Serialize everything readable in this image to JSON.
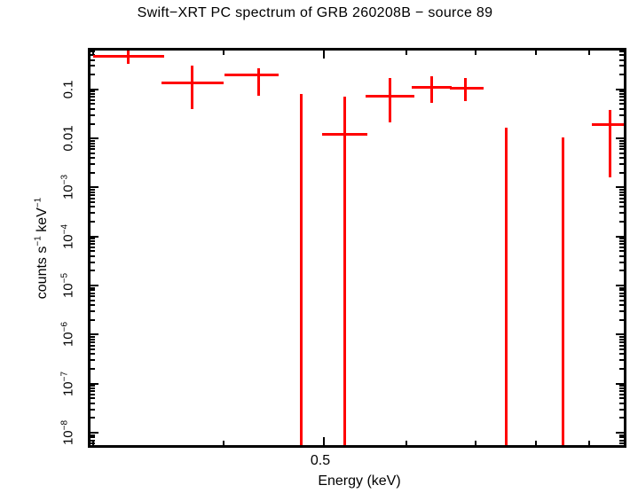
{
  "colors": {
    "data": "#ff0000",
    "axis": "#000000",
    "background": "#ffffff"
  },
  "chart_data": {
    "type": "scatter",
    "title": "Swift−XRT PC spectrum of GRB 260208B − source 89",
    "xlabel": "Energy (keV)",
    "ylabel_parts": [
      {
        "t": "counts s"
      },
      {
        "sup": "−1"
      },
      {
        "t": " keV"
      },
      {
        "sup": "−1"
      }
    ],
    "xscale": "log",
    "yscale": "log",
    "xlim": [
      0.298,
      0.972
    ],
    "ylim": [
      5.6e-09,
      0.62
    ],
    "grid": false,
    "legend": "none",
    "x_ticks": {
      "major": [
        0.5
      ],
      "minor": [
        0.3,
        0.4,
        0.6,
        0.7,
        0.8,
        0.9
      ],
      "labels": [
        {
          "value": 0.5,
          "text": "0.5"
        }
      ]
    },
    "y_ticks": {
      "major_labels": [
        {
          "v": 0.1,
          "t": "0.1"
        },
        {
          "v": 0.01,
          "t": "0.01"
        },
        {
          "v": 0.001,
          "t": "10",
          "sup": "−3"
        },
        {
          "v": 0.0001,
          "t": "10",
          "sup": "−4"
        },
        {
          "v": 1e-05,
          "t": "10",
          "sup": "−5"
        },
        {
          "v": 1e-06,
          "t": "10",
          "sup": "−6"
        },
        {
          "v": 1e-07,
          "t": "10",
          "sup": "−7"
        },
        {
          "v": 1e-08,
          "t": "10",
          "sup": "−8"
        }
      ]
    },
    "series": [
      {
        "name": "PC spectrum",
        "color": "#ff0000",
        "points": [
          {
            "e": 0.324,
            "e_lo": 0.3,
            "e_hi": 0.351,
            "rate": 0.48,
            "rate_hi": 0.64,
            "rate_lo": 0.33
          },
          {
            "e": 0.373,
            "e_lo": 0.349,
            "e_hi": 0.4,
            "rate": 0.134,
            "rate_hi": 0.31,
            "rate_lo": 0.04
          },
          {
            "e": 0.433,
            "e_lo": 0.401,
            "e_hi": 0.452,
            "rate": 0.194,
            "rate_hi": 0.27,
            "rate_lo": 0.075
          },
          {
            "e": 0.524,
            "e_lo": 0.498,
            "e_hi": 0.551,
            "rate": 0.0121,
            "rate_hi": 0.072,
            "rate_lo": null
          },
          {
            "e": 0.579,
            "e_lo": 0.548,
            "e_hi": 0.611,
            "rate": 0.072,
            "rate_hi": 0.171,
            "rate_lo": 0.0217
          },
          {
            "e": 0.635,
            "e_lo": 0.607,
            "e_hi": 0.663,
            "rate": 0.109,
            "rate_hi": 0.186,
            "rate_lo": 0.0538
          },
          {
            "e": 0.684,
            "e_lo": 0.661,
            "e_hi": 0.712,
            "rate": 0.104,
            "rate_hi": 0.171,
            "rate_lo": 0.0584
          },
          {
            "e": 0.943,
            "e_lo": 0.906,
            "e_hi": 0.985,
            "rate": 0.0191,
            "rate_hi": 0.0386,
            "rate_lo": 0.0016
          }
        ],
        "error_only_bins": [
          {
            "e": 0.475,
            "rate_top": 0.081
          },
          {
            "e": 0.749,
            "rate_top": 0.0169
          },
          {
            "e": 0.849,
            "rate_top": 0.0103
          }
        ]
      }
    ]
  }
}
